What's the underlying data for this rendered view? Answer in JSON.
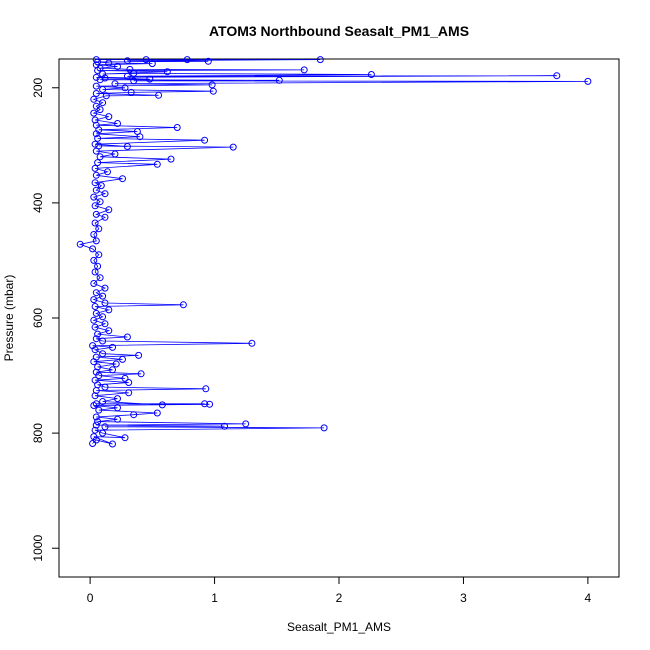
{
  "chart_data": {
    "type": "line",
    "title": "ATOM3 Northbound Seasalt_PM1_AMS",
    "xlabel": "Seasalt_PM1_AMS",
    "ylabel": "Pressure (mbar)",
    "xlim": [
      -0.25,
      4.25
    ],
    "ylim": [
      1050,
      150
    ],
    "y_reversed": true,
    "xticks": [
      0,
      1,
      2,
      3,
      4
    ],
    "yticks": [
      200,
      400,
      600,
      800,
      1000
    ],
    "grid": false,
    "marker": "open-circle",
    "color": "#0000ff",
    "series": [
      {
        "points": [
          [
            0.02,
            818
          ],
          [
            0.05,
            812
          ],
          [
            0.18,
            819
          ],
          [
            0.03,
            806
          ],
          [
            0.28,
            808
          ],
          [
            0.1,
            800
          ],
          [
            0.04,
            795
          ],
          [
            1.88,
            791
          ],
          [
            0.12,
            789
          ],
          [
            1.08,
            788
          ],
          [
            0.05,
            786
          ],
          [
            1.25,
            784
          ],
          [
            0.06,
            780
          ],
          [
            0.22,
            776
          ],
          [
            0.05,
            772
          ],
          [
            0.35,
            768
          ],
          [
            0.54,
            765
          ],
          [
            0.07,
            760
          ],
          [
            0.22,
            756
          ],
          [
            0.03,
            752
          ],
          [
            0.96,
            750
          ],
          [
            0.05,
            749
          ],
          [
            0.92,
            749
          ],
          [
            0.58,
            751
          ],
          [
            0.1,
            745
          ],
          [
            0.22,
            740
          ],
          [
            0.04,
            735
          ],
          [
            0.31,
            730
          ],
          [
            0.05,
            726
          ],
          [
            0.93,
            723
          ],
          [
            0.12,
            720
          ],
          [
            0.06,
            716
          ],
          [
            0.31,
            712
          ],
          [
            0.04,
            708
          ],
          [
            0.28,
            705
          ],
          [
            0.07,
            700
          ],
          [
            0.41,
            697
          ],
          [
            0.05,
            694
          ],
          [
            0.18,
            690
          ],
          [
            0.06,
            685
          ],
          [
            0.21,
            680
          ],
          [
            0.03,
            676
          ],
          [
            0.26,
            672
          ],
          [
            0.05,
            668
          ],
          [
            0.39,
            665
          ],
          [
            0.1,
            662
          ],
          [
            0.04,
            655
          ],
          [
            0.18,
            651
          ],
          [
            0.02,
            648
          ],
          [
            1.3,
            644
          ],
          [
            0.1,
            640
          ],
          [
            0.05,
            636
          ],
          [
            0.3,
            633
          ],
          [
            0.06,
            628
          ],
          [
            0.15,
            622
          ],
          [
            0.04,
            616
          ],
          [
            0.12,
            610
          ],
          [
            0.03,
            604
          ],
          [
            0.1,
            598
          ],
          [
            0.05,
            592
          ],
          [
            0.15,
            586
          ],
          [
            0.04,
            580
          ],
          [
            0.75,
            577
          ],
          [
            0.12,
            574
          ],
          [
            0.03,
            568
          ],
          [
            0.1,
            562
          ],
          [
            0.05,
            556
          ],
          [
            0.12,
            548
          ],
          [
            0.03,
            540
          ],
          [
            0.08,
            530
          ],
          [
            0.04,
            520
          ],
          [
            0.06,
            510
          ],
          [
            0.03,
            500
          ],
          [
            0.07,
            490
          ],
          [
            0.02,
            480
          ],
          [
            -0.08,
            472
          ],
          [
            0.05,
            466
          ],
          [
            0.03,
            455
          ],
          [
            0.07,
            445
          ],
          [
            0.04,
            435
          ],
          [
            0.12,
            425
          ],
          [
            0.05,
            420
          ],
          [
            0.15,
            412
          ],
          [
            0.04,
            405
          ],
          [
            0.08,
            398
          ],
          [
            0.03,
            390
          ],
          [
            0.12,
            384
          ],
          [
            0.05,
            378
          ],
          [
            0.09,
            370
          ],
          [
            0.04,
            365
          ],
          [
            0.26,
            358
          ],
          [
            0.05,
            352
          ],
          [
            0.14,
            346
          ],
          [
            0.04,
            340
          ],
          [
            0.54,
            333
          ],
          [
            0.06,
            330
          ],
          [
            0.65,
            324
          ],
          [
            0.08,
            320
          ],
          [
            0.2,
            315
          ],
          [
            0.05,
            310
          ],
          [
            1.15,
            303
          ],
          [
            0.07,
            301
          ],
          [
            0.3,
            302
          ],
          [
            0.04,
            298
          ],
          [
            0.92,
            291
          ],
          [
            0.06,
            288
          ],
          [
            0.4,
            285
          ],
          [
            0.05,
            280
          ],
          [
            0.38,
            276
          ],
          [
            0.07,
            273
          ],
          [
            0.7,
            269
          ],
          [
            0.05,
            265
          ],
          [
            0.22,
            262
          ],
          [
            0.04,
            256
          ],
          [
            0.15,
            250
          ],
          [
            0.03,
            244
          ],
          [
            0.08,
            238
          ],
          [
            0.05,
            232
          ],
          [
            0.1,
            226
          ],
          [
            0.03,
            220
          ],
          [
            0.13,
            214
          ],
          [
            0.55,
            213
          ],
          [
            0.05,
            210
          ],
          [
            0.33,
            208
          ],
          [
            0.99,
            206
          ],
          [
            0.1,
            203
          ],
          [
            0.28,
            200
          ],
          [
            0.05,
            197
          ],
          [
            0.98,
            195
          ],
          [
            0.2,
            193
          ],
          [
            4.0,
            189
          ],
          [
            0.35,
            188
          ],
          [
            1.52,
            187
          ],
          [
            0.08,
            186
          ],
          [
            0.48,
            185
          ],
          [
            0.12,
            183
          ],
          [
            0.05,
            182
          ],
          [
            3.75,
            179
          ],
          [
            0.3,
            180
          ],
          [
            2.26,
            177
          ],
          [
            0.35,
            175
          ],
          [
            0.1,
            176
          ],
          [
            0.62,
            172
          ],
          [
            0.06,
            170
          ],
          [
            1.72,
            169
          ],
          [
            0.32,
            168
          ],
          [
            0.08,
            166
          ],
          [
            0.22,
            163
          ],
          [
            0.05,
            160
          ],
          [
            0.5,
            158
          ],
          [
            0.15,
            157
          ],
          [
            0.06,
            155
          ],
          [
            0.95,
            154
          ],
          [
            0.3,
            153
          ],
          [
            1.85,
            151
          ],
          [
            0.05,
            151
          ],
          [
            0.78,
            151
          ],
          [
            0.45,
            151
          ]
        ]
      }
    ]
  }
}
